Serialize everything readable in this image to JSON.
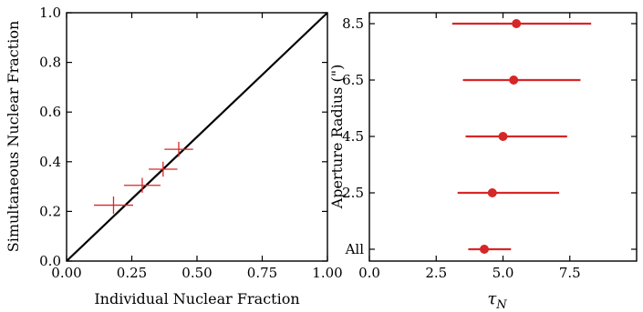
{
  "chart_data": [
    {
      "type": "scatter",
      "title": "",
      "xlabel": "Individual Nuclear Fraction",
      "ylabel": "Simultaneous Nuclear Fraction",
      "xlim": [
        0,
        1
      ],
      "ylim": [
        0,
        1
      ],
      "xticks": [
        "0.00",
        "0.25",
        "0.50",
        "0.75",
        "1.00"
      ],
      "xtick_values": [
        0,
        0.25,
        0.5,
        0.75,
        1.0
      ],
      "yticks": [
        "0.0",
        "0.2",
        "0.4",
        "0.6",
        "0.8",
        "1.0"
      ],
      "ytick_values": [
        0,
        0.2,
        0.4,
        0.6,
        0.8,
        1.0
      ],
      "reference_line": {
        "x": [
          0,
          1
        ],
        "y": [
          0,
          1
        ],
        "color": "#000000"
      },
      "marker_color": "#d62728",
      "grid": false,
      "points": [
        {
          "x": 0.18,
          "y": 0.225,
          "xerr": 0.075,
          "yerr": 0.035
        },
        {
          "x": 0.29,
          "y": 0.305,
          "xerr": 0.07,
          "yerr": 0.03
        },
        {
          "x": 0.37,
          "y": 0.37,
          "xerr": 0.055,
          "yerr": 0.03
        },
        {
          "x": 0.43,
          "y": 0.45,
          "xerr": 0.055,
          "yerr": 0.03
        }
      ]
    },
    {
      "type": "scatter",
      "title": "",
      "xlabel": "τ",
      "xlabel_sub": "N",
      "ylabel": "Aperture Radius (\")",
      "xlim": [
        0,
        10
      ],
      "xticks": [
        "0.0",
        "2.5",
        "5.0",
        "7.5"
      ],
      "xtick_values": [
        0,
        2.5,
        5.0,
        7.5
      ],
      "categories": [
        "All",
        "2.5",
        "4.5",
        "6.5",
        "8.5"
      ],
      "marker_color": "#d62728",
      "grid": false,
      "points": [
        {
          "category": "All",
          "x": 4.3,
          "xlow": 3.7,
          "xhigh": 5.3
        },
        {
          "category": "2.5",
          "x": 4.6,
          "xlow": 3.3,
          "xhigh": 7.1
        },
        {
          "category": "4.5",
          "x": 5.0,
          "xlow": 3.6,
          "xhigh": 7.4
        },
        {
          "category": "6.5",
          "x": 5.4,
          "xlow": 3.5,
          "xhigh": 7.9
        },
        {
          "category": "8.5",
          "x": 5.5,
          "xlow": 3.1,
          "xhigh": 8.3
        }
      ]
    }
  ]
}
